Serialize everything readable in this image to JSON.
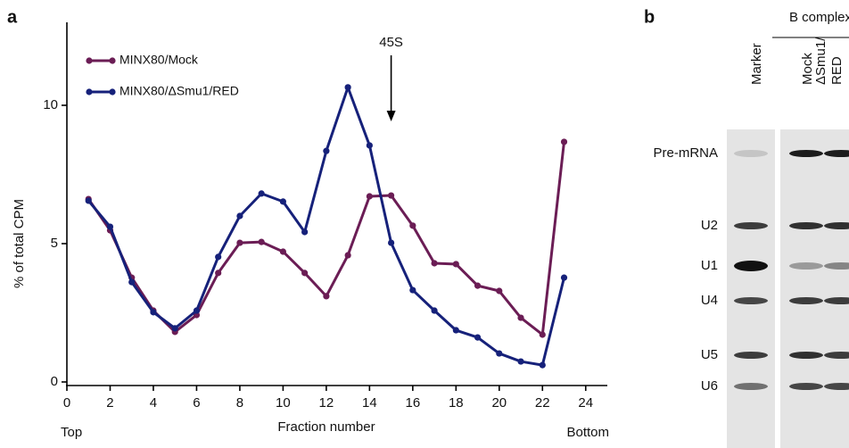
{
  "chart_data": {
    "type": "line",
    "panel_label": "a",
    "x_label": "Fraction number",
    "y_label": "% of total CPM",
    "x_start_label": "Top",
    "x_end_label": "Bottom",
    "annotation": {
      "text": "45S",
      "x": 15
    },
    "x": [
      1,
      2,
      3,
      4,
      5,
      6,
      7,
      8,
      9,
      10,
      11,
      12,
      13,
      14,
      15,
      16,
      17,
      18,
      19,
      20,
      21,
      22,
      23
    ],
    "series": [
      {
        "name": "MINX80/Mock",
        "color": "#6b1d55",
        "values": [
          6.61,
          5.48,
          3.77,
          2.58,
          1.81,
          2.42,
          3.94,
          5.03,
          5.06,
          4.71,
          3.94,
          3.1,
          4.58,
          6.71,
          6.74,
          5.65,
          4.29,
          4.26,
          3.48,
          3.29,
          2.32,
          1.71,
          8.68
        ]
      },
      {
        "name": "MINX80/ΔSmu1/RED",
        "color": "#16217a",
        "values": [
          6.55,
          5.61,
          3.61,
          2.52,
          1.94,
          2.58,
          4.52,
          6.0,
          6.81,
          6.52,
          5.42,
          8.35,
          10.65,
          8.55,
          5.03,
          3.32,
          2.58,
          1.87,
          1.61,
          1.03,
          0.74,
          0.61,
          3.77
        ]
      }
    ],
    "xlim": [
      0,
      25
    ],
    "xticks": [
      0,
      2,
      4,
      6,
      8,
      10,
      12,
      14,
      16,
      18,
      20,
      22,
      24
    ],
    "ylim": [
      0,
      13
    ],
    "yticks": [
      0,
      5,
      10
    ],
    "legend": "top-left"
  },
  "gel": {
    "panel_label": "b",
    "group_label": "B complex",
    "lanes": [
      [
        "Marker"
      ],
      [
        "Mock"
      ],
      [
        "ΔSmu1/",
        "RED"
      ]
    ],
    "bands": [
      "Pre-mRNA",
      "U2",
      "U1",
      "U4",
      "U5",
      "U6"
    ]
  }
}
